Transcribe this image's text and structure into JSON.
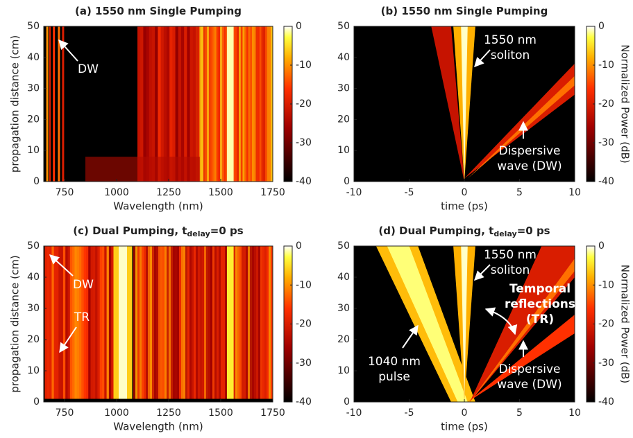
{
  "chart_data": [
    {
      "type": "heatmap",
      "title": "(a) 1550 nm Single Pumping",
      "xlabel": "Wavelength (nm)",
      "ylabel": "propagation distance (cm)",
      "xlim": [
        650,
        1750
      ],
      "xticks": [
        750,
        1000,
        1250,
        1500,
        1750
      ],
      "ylim": [
        0,
        50
      ],
      "yticks": [
        0,
        10,
        20,
        30,
        40,
        50
      ],
      "colorbar": {
        "lim": [
          -40,
          0
        ],
        "ticks": [
          0,
          -10,
          -20,
          -30,
          -40
        ]
      },
      "annotations": [
        {
          "lines": [
            "DW"
          ]
        }
      ]
    },
    {
      "type": "heatmap",
      "title": "(b) 1550 nm Single Pumping",
      "xlabel": "time (ps)",
      "xlim": [
        -10,
        10
      ],
      "xticks": [
        -10,
        -5,
        0,
        5,
        10
      ],
      "ylim": [
        0,
        50
      ],
      "yticks": [
        0,
        10,
        20,
        30,
        40,
        50
      ],
      "colorbar": {
        "label": "Normalized Power (dB)",
        "lim": [
          -40,
          0
        ],
        "ticks": [
          0,
          -10,
          -20,
          -30,
          -40
        ]
      },
      "annotations": [
        {
          "lines": [
            "1550 nm",
            "soliton"
          ]
        },
        {
          "lines": [
            "Dispersive",
            "wave (DW)"
          ]
        }
      ]
    },
    {
      "type": "heatmap",
      "title": "(c) Dual Pumping,  t",
      "title_subscript": "delay",
      "title_suffix": "=0 ps",
      "xlabel": "Wavelength (nm)",
      "ylabel": "propagation distance (cm)",
      "xlim": [
        650,
        1750
      ],
      "xticks": [
        750,
        1000,
        1250,
        1500,
        1750
      ],
      "ylim": [
        0,
        50
      ],
      "yticks": [
        0,
        10,
        20,
        30,
        40,
        50
      ],
      "colorbar": {
        "lim": [
          -40,
          0
        ],
        "ticks": [
          0,
          -10,
          -20,
          -30,
          -40
        ]
      },
      "annotations": [
        {
          "lines": [
            "DW"
          ]
        },
        {
          "lines": [
            "TR"
          ]
        }
      ]
    },
    {
      "type": "heatmap",
      "title": "(d) Dual Pumping,  t",
      "title_subscript": "delay",
      "title_suffix": "=0 ps",
      "xlabel": "time (ps)",
      "xlim": [
        -10,
        10
      ],
      "xticks": [
        -10,
        -5,
        0,
        5,
        10
      ],
      "ylim": [
        0,
        50
      ],
      "yticks": [
        0,
        10,
        20,
        30,
        40,
        50
      ],
      "colorbar": {
        "label": "Normalized Power (dB)",
        "lim": [
          -40,
          0
        ],
        "ticks": [
          0,
          -10,
          -20,
          -30,
          -40
        ]
      },
      "annotations": [
        {
          "lines": [
            "1550 nm",
            "soliton"
          ]
        },
        {
          "lines": [
            "Temporal",
            "reflections",
            "(TR)"
          ],
          "bold": true
        },
        {
          "lines": [
            "Dispersive",
            "wave (DW)"
          ]
        },
        {
          "lines": [
            "1040 nm",
            "pulse"
          ]
        }
      ]
    }
  ]
}
